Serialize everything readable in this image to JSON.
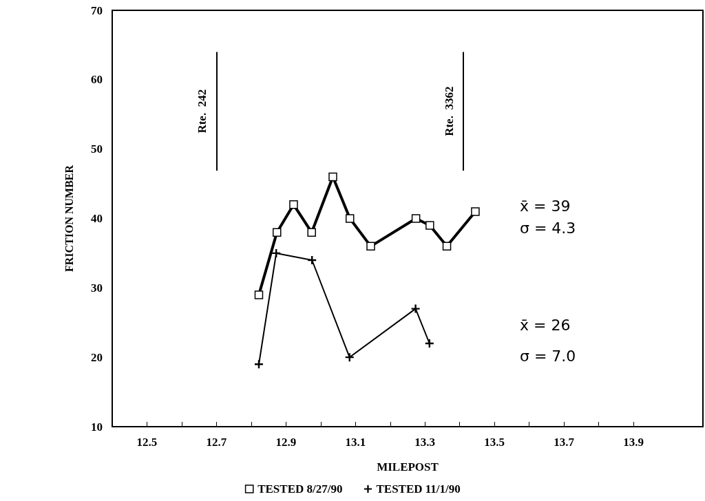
{
  "chart_data": {
    "type": "line",
    "xlabel": "MILEPOST",
    "ylabel": "FRICTION NUMBER",
    "xlim": [
      12.4,
      14.1
    ],
    "xticks": [
      12.5,
      {
        "value": 12.6,
        "label": null
      },
      12.7,
      {
        "value": 12.8,
        "label": null
      },
      12.9,
      {
        "value": 13.0,
        "label": null
      },
      13.1,
      {
        "value": 13.2,
        "label": null
      },
      13.3,
      {
        "value": 13.4,
        "label": null
      },
      13.5,
      {
        "value": 13.6,
        "label": null
      },
      13.7,
      {
        "value": 13.8,
        "label": null
      },
      13.9
    ],
    "ylim": [
      10,
      70
    ],
    "yticks": [
      10,
      20,
      30,
      40,
      50,
      60,
      70
    ],
    "series": [
      {
        "name": "TESTED 8/27/90",
        "color": "#000000",
        "marker": "square",
        "x": [
          12.822,
          12.874,
          12.922,
          12.974,
          13.035,
          13.084,
          13.144,
          13.274,
          13.314,
          13.363,
          13.445
        ],
        "values": [
          29,
          38,
          42,
          38,
          46,
          40,
          36,
          40,
          39,
          36,
          41
        ]
      },
      {
        "name": "TESTED 11/1/90",
        "color": "#000000",
        "marker": "cross",
        "x": [
          12.822,
          12.872,
          12.975,
          13.083,
          13.273,
          13.313
        ],
        "values": [
          19,
          35,
          34,
          20,
          27,
          22
        ]
      }
    ],
    "ref_lines": [
      {
        "axis": "x",
        "value": 12.7,
        "label": "Rte.  242"
      },
      {
        "axis": "x",
        "value": 13.41,
        "label": "Rte.  3362"
      }
    ],
    "annotations": [
      "x̄ = 39",
      "σ = 4.3",
      "x̄ = 26",
      "σ = 7.0"
    ],
    "legend": "bottom",
    "grid": false,
    "line_style": "solid"
  }
}
